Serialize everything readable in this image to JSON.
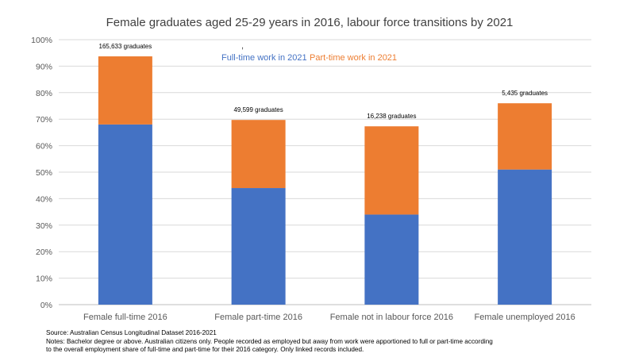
{
  "chart_data": {
    "type": "bar",
    "stacked": true,
    "title": "Female graduates aged 25-29 years in 2016, labour force transitions by 2021",
    "categories": [
      "Female full-time 2016",
      "Female part-time 2016",
      "Female not in labour force 2016",
      "Female unemployed 2016"
    ],
    "series": [
      {
        "name": "Full-time work in 2021",
        "color": "#4472C4",
        "values": [
          68,
          44,
          34,
          51
        ]
      },
      {
        "name": "Part-time work in 2021",
        "color": "#ED7D31",
        "values": [
          25.7,
          25.7,
          33.3,
          25
        ]
      }
    ],
    "bar_labels": [
      "165,633 graduates",
      "49,599 graduates",
      "16,238 graduates",
      "5,435 graduates"
    ],
    "ylim": [
      0,
      100
    ],
    "y_ticks": [
      "0%",
      "10%",
      "20%",
      "30%",
      "40%",
      "50%",
      "60%",
      "70%",
      "80%",
      "90%",
      "100%"
    ],
    "grid": true,
    "legend_position": "top-center",
    "legend_stray_mark": ","
  },
  "notes": {
    "source": "Source: Australian Census Longitudinal Dataset 2016-2021",
    "line1": "Notes: Bachelor degree or above. Australian citizens only. People recorded as employed but away from work were apportioned to full or part-time according",
    "line2": "to the overall employment share of full-time and part-time for their 2016 category.  Only linked records included."
  }
}
